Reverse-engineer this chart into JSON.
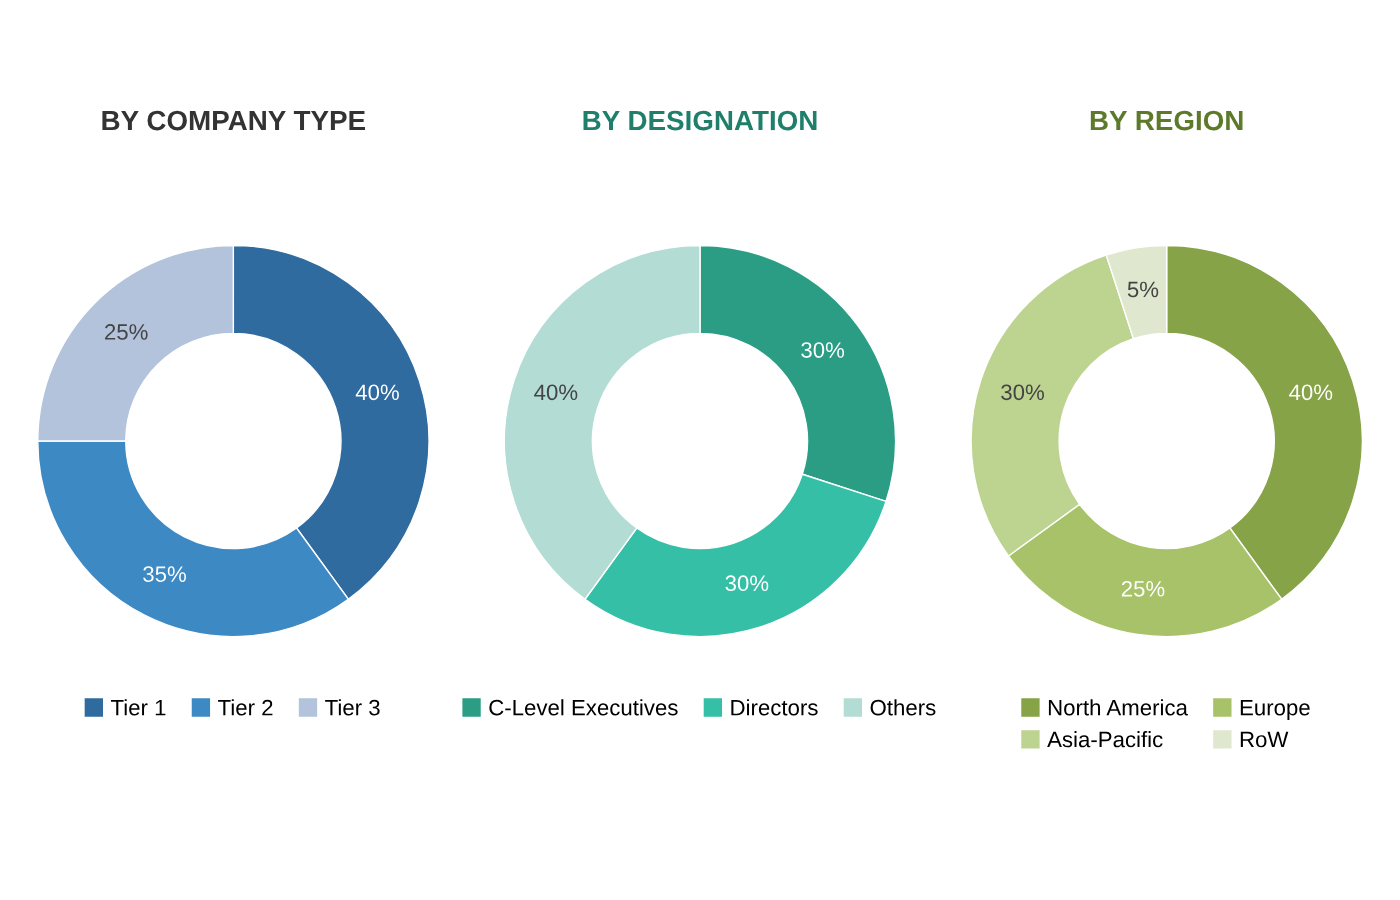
{
  "chart_data": [
    {
      "type": "donut",
      "title": "BY COMPANY TYPE",
      "categories": [
        "Tier 1",
        "Tier 2",
        "Tier 3"
      ],
      "values": [
        40,
        35,
        25
      ],
      "colors": [
        "#2f6b9f",
        "#3d89c4",
        "#b3c3dc"
      ],
      "value_labels": [
        "40%",
        "35%",
        "25%"
      ],
      "legend": "bottom"
    },
    {
      "type": "donut",
      "title": "BY DESIGNATION",
      "categories": [
        "C-Level Executives",
        "Directors",
        "Others"
      ],
      "values": [
        30,
        30,
        40
      ],
      "colors": [
        "#2a9d84",
        "#35bfa7",
        "#b2dcd4"
      ],
      "value_labels": [
        "30%",
        "30%",
        "40%"
      ],
      "legend": "bottom"
    },
    {
      "type": "donut",
      "title": "BY REGION",
      "categories": [
        "North America",
        "Europe",
        "Asia-Pacific",
        "RoW"
      ],
      "values": [
        40,
        25,
        30,
        5
      ],
      "colors": [
        "#86a347",
        "#a7c268",
        "#bdd390",
        "#dfe7cf"
      ],
      "value_labels": [
        "40%",
        "25%",
        "30%",
        "5%"
      ],
      "legend": "bottom"
    }
  ]
}
